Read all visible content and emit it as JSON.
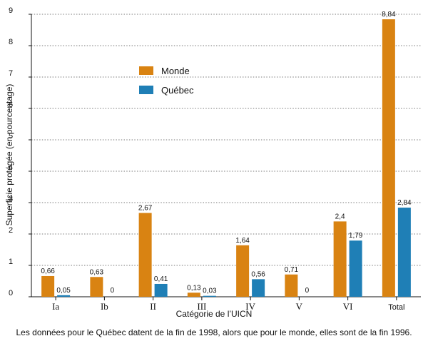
{
  "chart_data": {
    "type": "bar",
    "categories": [
      "Ia",
      "Ib",
      "II",
      "III",
      "IV",
      "V",
      "VI",
      "Total"
    ],
    "series": [
      {
        "name": "Monde",
        "color": "#d98312",
        "values": [
          0.66,
          0.63,
          2.67,
          0.13,
          1.64,
          0.71,
          2.4,
          8.84
        ],
        "labels": [
          "0,66",
          "0,63",
          "2,67",
          "0,13",
          "1,64",
          "0,71",
          "2,4",
          "8,84"
        ]
      },
      {
        "name": "Québec",
        "color": "#1f7fb6",
        "values": [
          0.05,
          0,
          0.41,
          0.03,
          0.56,
          0,
          1.79,
          2.84
        ],
        "labels": [
          "0,05",
          "0",
          "0,41",
          "0,03",
          "0,56",
          "0",
          "1,79",
          "2,84"
        ]
      }
    ],
    "xlabel": "Catégorie de l’UICN",
    "ylabel": "Superficie protégée (en pourcentage)",
    "ylim": [
      0,
      9
    ],
    "yticks": [
      0,
      1,
      2,
      3,
      4,
      5,
      6,
      7,
      8,
      9
    ],
    "grid": true,
    "legend": "upper-left"
  },
  "caption": "Les données pour le Québec datent de la fin de 1998, alors que pour le monde, elles sont de la fin 1996."
}
